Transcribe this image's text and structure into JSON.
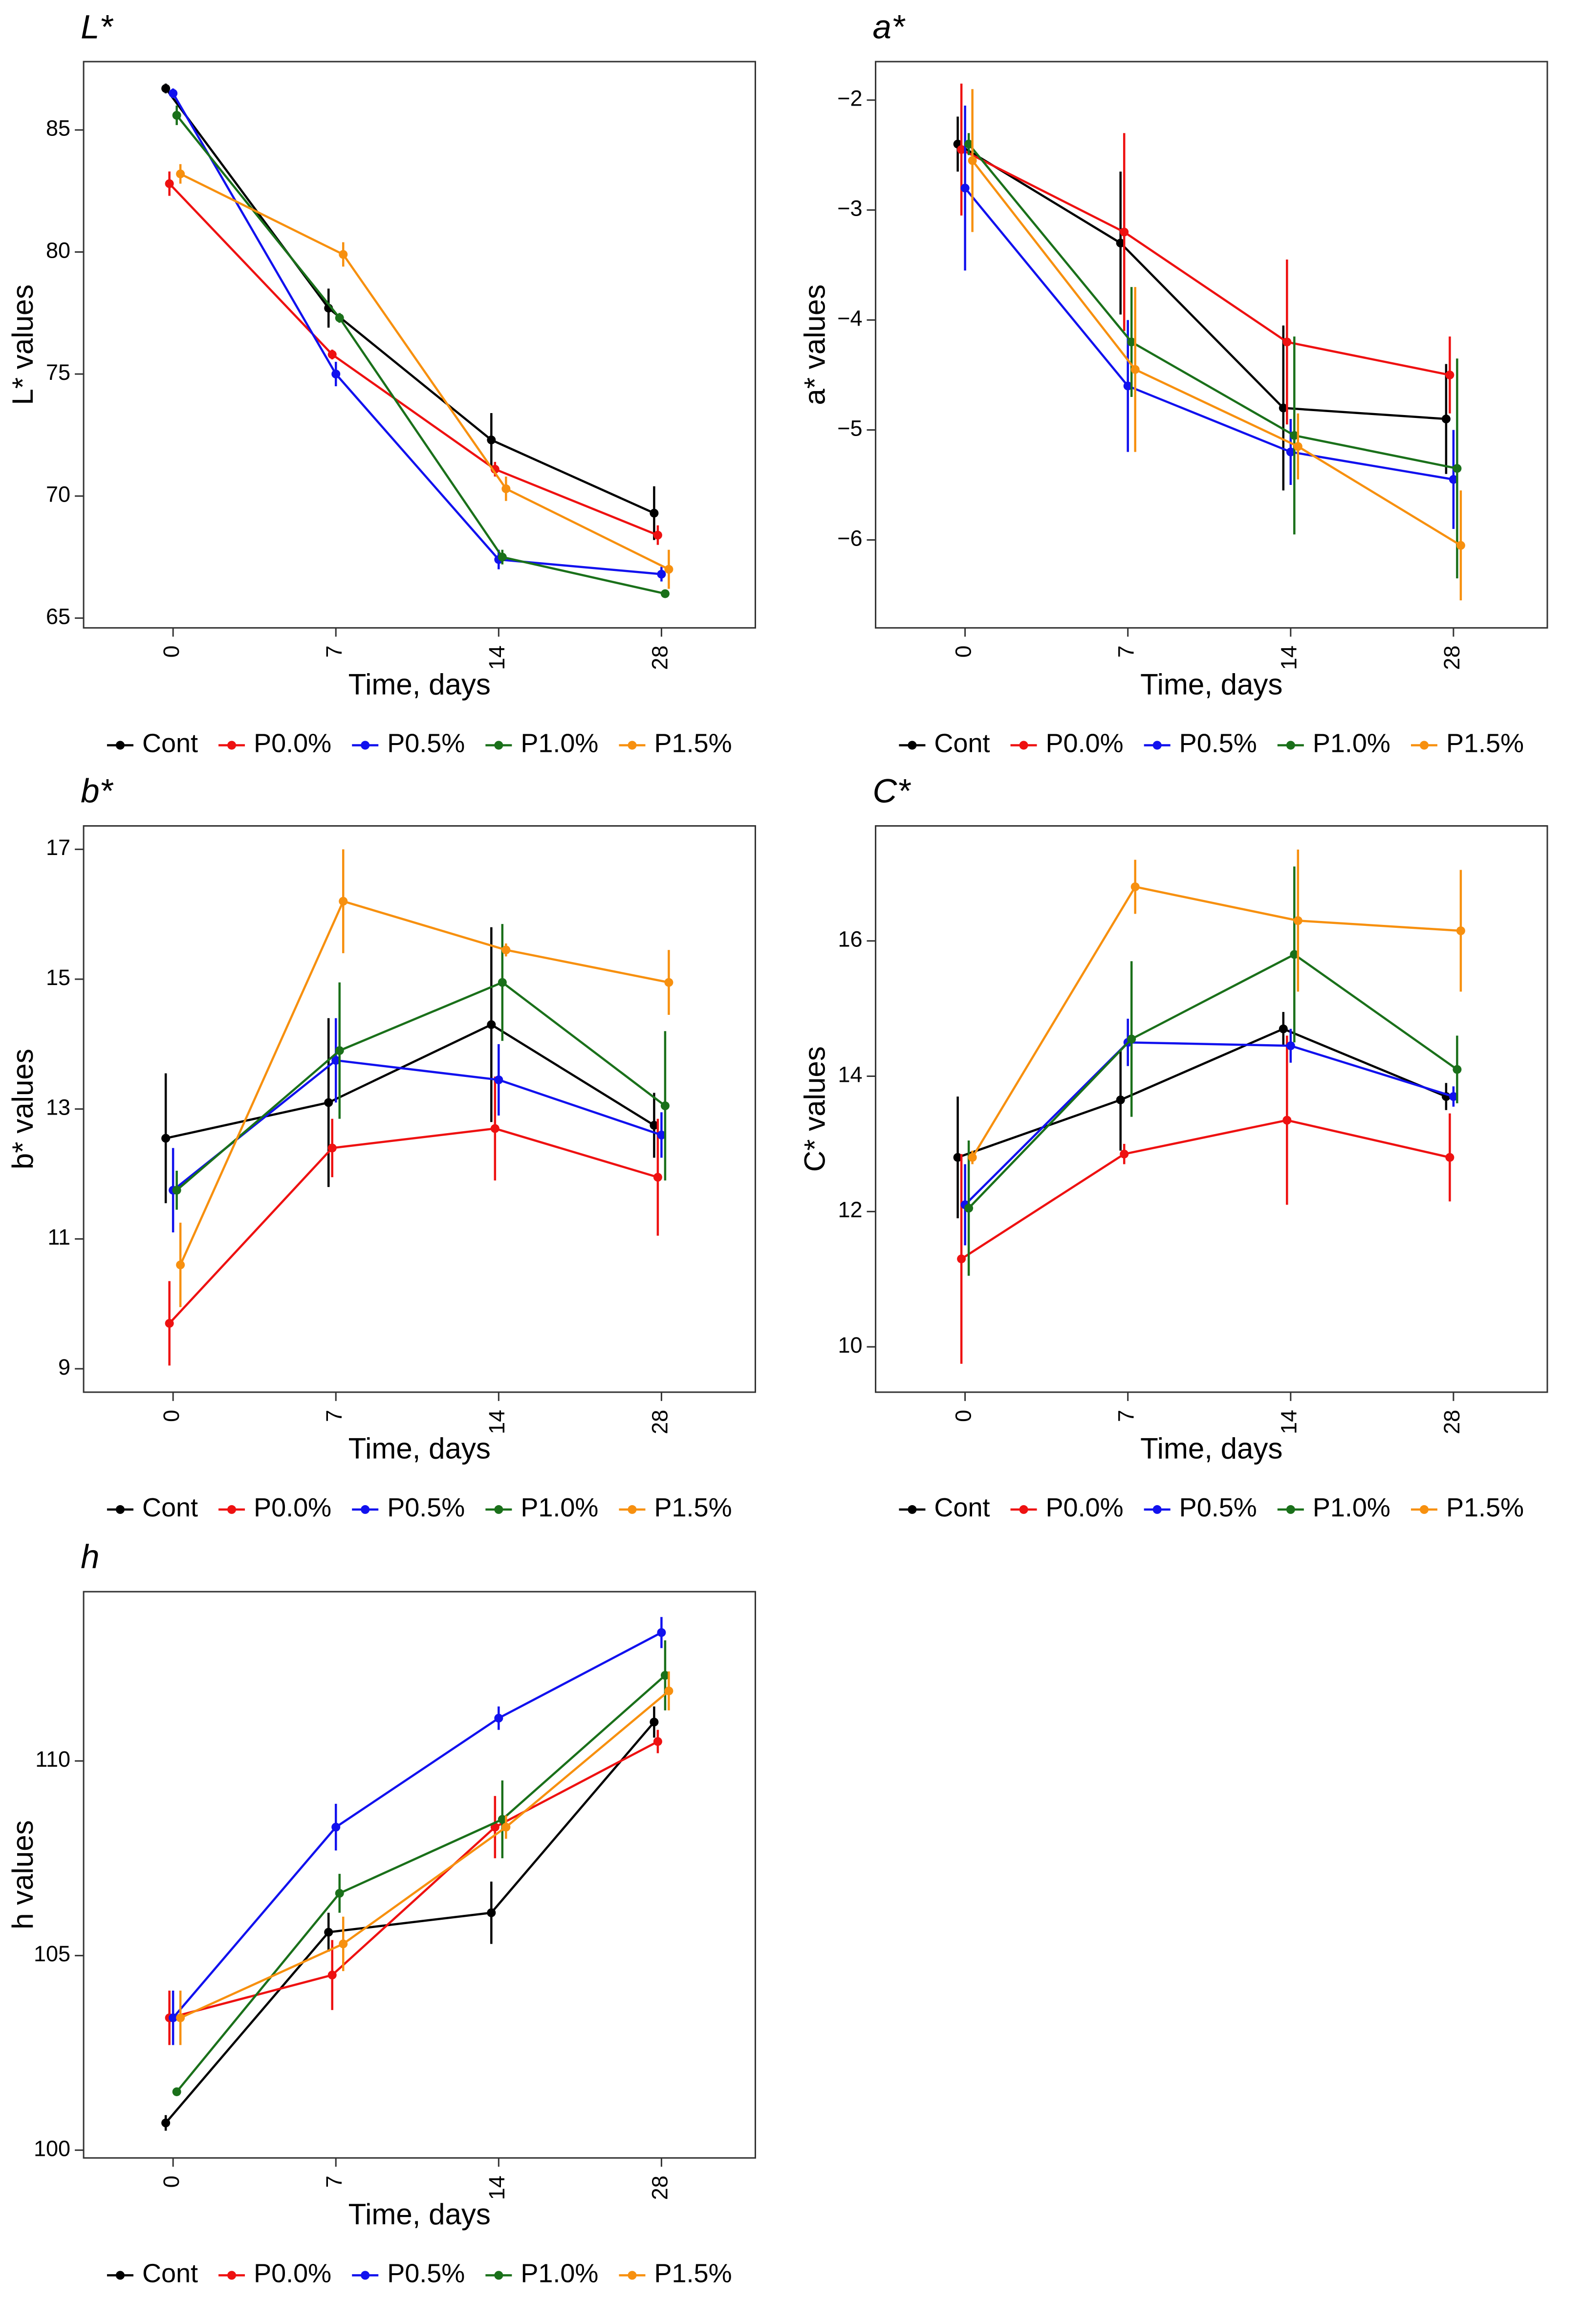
{
  "chart_data": [
    {
      "type": "line",
      "title": "L*",
      "ylabel": "L* values",
      "xlabel": "Time, days",
      "categories": [
        "0",
        "7",
        "14",
        "28"
      ],
      "ylim": [
        64.6,
        87.8
      ],
      "yticks": [
        65,
        70,
        75,
        80,
        85
      ],
      "series": [
        {
          "name": "Cont",
          "color": "#000000",
          "values": [
            86.7,
            77.7,
            72.3,
            69.3
          ],
          "errors": [
            0.2,
            0.8,
            1.1,
            1.1
          ]
        },
        {
          "name": "P0.0%",
          "color": "#ee1111",
          "values": [
            82.8,
            75.8,
            71.1,
            68.4
          ],
          "errors": [
            0.5,
            0.2,
            0.3,
            0.4
          ]
        },
        {
          "name": "P0.5%",
          "color": "#1111ee",
          "values": [
            86.5,
            75.0,
            67.4,
            66.8
          ],
          "errors": [
            0.2,
            0.5,
            0.4,
            0.3
          ]
        },
        {
          "name": "P1.0%",
          "color": "#1a701a",
          "values": [
            85.6,
            77.3,
            67.5,
            66.0
          ],
          "errors": [
            0.4,
            0.2,
            0.3,
            0.1
          ]
        },
        {
          "name": "P1.5%",
          "color": "#f7900f",
          "values": [
            83.2,
            79.9,
            70.3,
            67.0
          ],
          "errors": [
            0.4,
            0.5,
            0.5,
            0.8
          ]
        }
      ]
    },
    {
      "type": "line",
      "title": "a*",
      "ylabel": "a* values",
      "xlabel": "Time, days",
      "categories": [
        "0",
        "7",
        "14",
        "28"
      ],
      "ylim": [
        -6.8,
        -1.65
      ],
      "yticks": [
        {
          "value": -6,
          "label": "−6"
        },
        {
          "value": -5,
          "label": "−5"
        },
        {
          "value": -4,
          "label": "−4"
        },
        {
          "value": -3,
          "label": "−3"
        },
        {
          "value": -2,
          "label": "−2"
        }
      ],
      "series": [
        {
          "name": "Cont",
          "color": "#000000",
          "values": [
            -2.4,
            -3.3,
            -4.8,
            -4.9
          ],
          "errors": [
            0.25,
            0.65,
            0.75,
            0.5
          ]
        },
        {
          "name": "P0.0%",
          "color": "#ee1111",
          "values": [
            -2.45,
            -3.2,
            -4.2,
            -4.5
          ],
          "errors": [
            0.6,
            0.9,
            0.75,
            0.35
          ]
        },
        {
          "name": "P0.5%",
          "color": "#1111ee",
          "values": [
            -2.8,
            -4.6,
            -5.2,
            -5.45
          ],
          "errors": [
            0.75,
            0.6,
            0.3,
            0.45
          ]
        },
        {
          "name": "P1.0%",
          "color": "#1a701a",
          "values": [
            -2.4,
            -4.2,
            -5.05,
            -5.35
          ],
          "errors": [
            0.1,
            0.5,
            0.9,
            1.0
          ]
        },
        {
          "name": "P1.5%",
          "color": "#f7900f",
          "values": [
            -2.55,
            -4.45,
            -5.15,
            -6.05
          ],
          "errors": [
            0.65,
            0.75,
            0.3,
            0.5
          ]
        }
      ]
    },
    {
      "type": "line",
      "title": "b*",
      "ylabel": "b* values",
      "xlabel": "Time, days",
      "categories": [
        "0",
        "7",
        "14",
        "28"
      ],
      "ylim": [
        8.64,
        17.36
      ],
      "yticks": [
        9,
        11,
        13,
        15,
        17
      ],
      "series": [
        {
          "name": "Cont",
          "color": "#000000",
          "values": [
            12.55,
            13.1,
            14.3,
            12.75
          ],
          "errors": [
            1.0,
            1.3,
            1.5,
            0.5
          ]
        },
        {
          "name": "P0.0%",
          "color": "#ee1111",
          "values": [
            9.7,
            12.4,
            12.7,
            11.95
          ],
          "errors": [
            0.65,
            0.45,
            0.8,
            0.9
          ]
        },
        {
          "name": "P0.5%",
          "color": "#1111ee",
          "values": [
            11.75,
            13.75,
            13.45,
            12.6
          ],
          "errors": [
            0.65,
            0.65,
            0.55,
            0.35
          ]
        },
        {
          "name": "P1.0%",
          "color": "#1a701a",
          "values": [
            11.75,
            13.9,
            14.95,
            13.05
          ],
          "errors": [
            0.3,
            1.05,
            0.9,
            1.15
          ]
        },
        {
          "name": "P1.5%",
          "color": "#f7900f",
          "values": [
            10.6,
            16.2,
            15.45,
            14.95
          ],
          "errors": [
            0.65,
            0.8,
            0.1,
            0.5
          ]
        }
      ]
    },
    {
      "type": "line",
      "title": "C*",
      "ylabel": "C* values",
      "xlabel": "Time, days",
      "categories": [
        "0",
        "7",
        "14",
        "28"
      ],
      "ylim": [
        9.33,
        17.7
      ],
      "yticks": [
        10,
        12,
        14,
        16
      ],
      "series": [
        {
          "name": "Cont",
          "color": "#000000",
          "values": [
            12.8,
            13.65,
            14.7,
            13.7
          ],
          "errors": [
            0.9,
            0.75,
            0.25,
            0.2
          ]
        },
        {
          "name": "P0.0%",
          "color": "#ee1111",
          "values": [
            11.3,
            12.85,
            13.35,
            12.8
          ],
          "errors": [
            1.55,
            0.15,
            1.25,
            0.65
          ]
        },
        {
          "name": "P0.5%",
          "color": "#1111ee",
          "values": [
            12.1,
            14.5,
            14.45,
            13.7
          ],
          "errors": [
            0.6,
            0.35,
            0.25,
            0.15
          ]
        },
        {
          "name": "P1.0%",
          "color": "#1a701a",
          "values": [
            12.05,
            14.55,
            15.8,
            14.1
          ],
          "errors": [
            1.0,
            1.15,
            1.3,
            0.5
          ]
        },
        {
          "name": "P1.5%",
          "color": "#f7900f",
          "values": [
            12.8,
            16.8,
            16.3,
            16.15
          ],
          "errors": [
            0.1,
            0.4,
            1.05,
            0.9
          ]
        }
      ]
    },
    {
      "type": "line",
      "title": "h",
      "ylabel": "h values",
      "xlabel": "Time, days",
      "categories": [
        "0",
        "7",
        "14",
        "28"
      ],
      "ylim": [
        99.8,
        114.35
      ],
      "yticks": [
        100,
        105,
        110
      ],
      "series": [
        {
          "name": "Cont",
          "color": "#000000",
          "values": [
            100.7,
            105.6,
            106.1,
            111.0
          ],
          "errors": [
            0.2,
            0.5,
            0.8,
            0.4
          ]
        },
        {
          "name": "P0.0%",
          "color": "#ee1111",
          "values": [
            103.4,
            104.5,
            108.3,
            110.5
          ],
          "errors": [
            0.7,
            0.9,
            0.8,
            0.3
          ]
        },
        {
          "name": "P0.5%",
          "color": "#1111ee",
          "values": [
            103.4,
            108.3,
            111.1,
            113.3
          ],
          "errors": [
            0.7,
            0.6,
            0.3,
            0.4
          ]
        },
        {
          "name": "P1.0%",
          "color": "#1a701a",
          "values": [
            101.5,
            106.6,
            108.5,
            112.2
          ],
          "errors": [
            0.1,
            0.5,
            1.0,
            0.9
          ]
        },
        {
          "name": "P1.5%",
          "color": "#f7900f",
          "values": [
            103.4,
            105.3,
            108.3,
            111.8
          ],
          "errors": [
            0.7,
            0.7,
            0.3,
            0.5
          ]
        }
      ]
    }
  ]
}
